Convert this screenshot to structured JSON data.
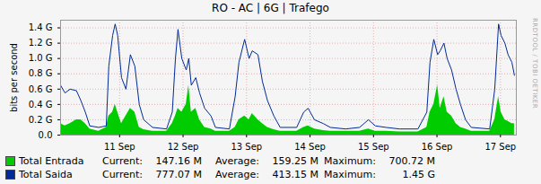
{
  "chart_data": {
    "type": "area",
    "title": "RO - AC | 6G | Trafego",
    "y_label": "bits per second",
    "side_text": "RRDTOOL / TOBI OETIKER",
    "stats_labels": [
      "Current:",
      "Average:",
      "Maximum:"
    ],
    "x": [
      10.07,
      10.14,
      10.22,
      10.32,
      10.39,
      10.46,
      10.53,
      10.67,
      10.79,
      10.83,
      10.89,
      10.93,
      10.97,
      11.03,
      11.1,
      11.17,
      11.24,
      11.31,
      11.38,
      11.52,
      11.74,
      11.83,
      11.88,
      11.92,
      11.98,
      12.05,
      12.09,
      12.13,
      12.2,
      12.26,
      12.34,
      12.44,
      12.51,
      12.73,
      12.82,
      12.88,
      12.97,
      13.04,
      13.09,
      13.18,
      13.25,
      13.33,
      13.43,
      13.53,
      13.79,
      13.9,
      13.97,
      14.07,
      14.21,
      14.32,
      14.56,
      14.78,
      14.92,
      15.03,
      15.2,
      15.41,
      15.7,
      15.84,
      15.89,
      15.95,
      16.01,
      16.05,
      16.11,
      16.16,
      16.23,
      16.3,
      16.37,
      16.45,
      16.54,
      16.83,
      16.91,
      16.97,
      17.01,
      17.07,
      17.12,
      17.18,
      17.22
    ],
    "series": [
      {
        "name": "Total Entrada",
        "type": "area",
        "color": "#00cc00",
        "current": "147.16 M",
        "average": "159.25 M",
        "maximum": "700.72 M",
        "values": [
          0.15,
          0.12,
          0.15,
          0.2,
          0.2,
          0.15,
          0.08,
          0.05,
          0.1,
          0.25,
          0.3,
          0.4,
          0.3,
          0.15,
          0.25,
          0.35,
          0.3,
          0.1,
          0.07,
          0.05,
          0.05,
          0.15,
          0.25,
          0.35,
          0.3,
          0.4,
          0.65,
          0.3,
          0.35,
          0.2,
          0.1,
          0.08,
          0.05,
          0.05,
          0.1,
          0.2,
          0.25,
          0.2,
          0.28,
          0.2,
          0.15,
          0.1,
          0.07,
          0.05,
          0.05,
          0.1,
          0.12,
          0.08,
          0.06,
          0.05,
          0.05,
          0.05,
          0.08,
          0.05,
          0.05,
          0.04,
          0.04,
          0.1,
          0.3,
          0.4,
          0.65,
          0.35,
          0.5,
          0.3,
          0.25,
          0.15,
          0.1,
          0.08,
          0.05,
          0.05,
          0.2,
          0.5,
          0.3,
          0.2,
          0.18,
          0.15,
          0.15
        ]
      },
      {
        "name": "Total Saida",
        "type": "line",
        "color": "#002a97",
        "current": "777.07 M",
        "average": "413.15 M",
        "maximum": "1.45 G",
        "values": [
          0.65,
          0.55,
          0.6,
          0.58,
          0.45,
          0.3,
          0.12,
          0.1,
          0.12,
          0.9,
          1.3,
          1.45,
          1.3,
          0.75,
          0.6,
          1.05,
          0.9,
          0.4,
          0.2,
          0.1,
          0.08,
          0.3,
          1.0,
          1.38,
          1.0,
          0.85,
          1.0,
          0.65,
          0.75,
          0.55,
          0.35,
          0.25,
          0.1,
          0.08,
          0.5,
          0.95,
          1.25,
          1.0,
          1.1,
          1.05,
          0.7,
          0.45,
          0.25,
          0.1,
          0.1,
          0.3,
          0.35,
          0.2,
          0.15,
          0.1,
          0.08,
          0.1,
          0.2,
          0.12,
          0.1,
          0.08,
          0.08,
          0.3,
          0.95,
          1.25,
          1.05,
          1.1,
          1.2,
          1.0,
          0.85,
          0.6,
          0.4,
          0.2,
          0.1,
          0.08,
          0.6,
          1.45,
          1.3,
          1.2,
          1.05,
          0.95,
          0.78
        ]
      }
    ],
    "xlim": [
      10.07,
      17.25
    ],
    "xticks": [
      {
        "value": 11,
        "label": "11 Sep"
      },
      {
        "value": 12,
        "label": "12 Sep"
      },
      {
        "value": 13,
        "label": "13 Sep"
      },
      {
        "value": 14,
        "label": "14 Sep"
      },
      {
        "value": 15,
        "label": "15 Sep"
      },
      {
        "value": 16,
        "label": "16 Sep"
      },
      {
        "value": 17,
        "label": "17 Sep"
      }
    ],
    "ylim": [
      0,
      1.5
    ],
    "yticks": [
      {
        "value": 0,
        "label": "0.0"
      },
      {
        "value": 0.2,
        "label": "0.2 G"
      },
      {
        "value": 0.4,
        "label": "0.4 G"
      },
      {
        "value": 0.6,
        "label": "0.6 G"
      },
      {
        "value": 0.8,
        "label": "0.8 G"
      },
      {
        "value": 1.0,
        "label": "1.0 G"
      },
      {
        "value": 1.2,
        "label": "1.2 G"
      },
      {
        "value": 1.4,
        "label": "1.4 G"
      }
    ],
    "grid": true,
    "legend": "bottom"
  }
}
